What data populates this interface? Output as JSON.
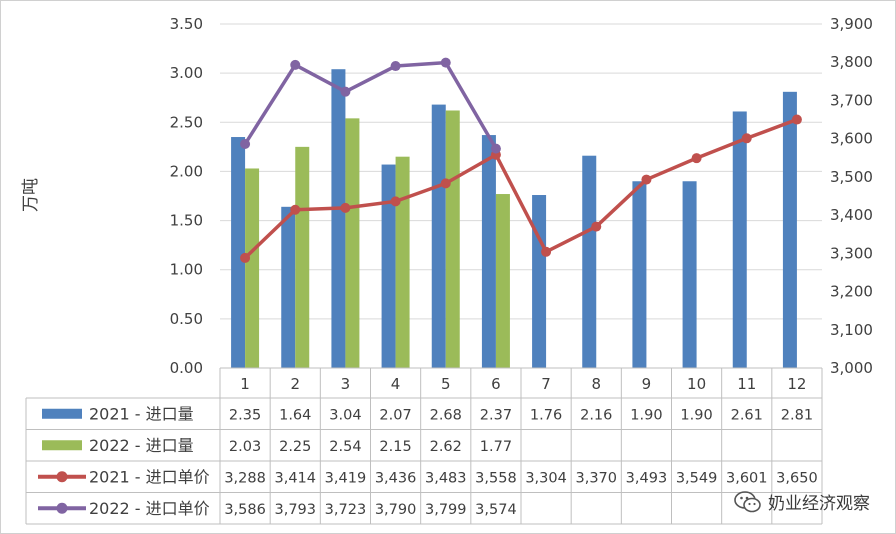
{
  "chart_data": {
    "type": "bar",
    "categories": [
      "1",
      "2",
      "3",
      "4",
      "5",
      "6",
      "7",
      "8",
      "9",
      "10",
      "11",
      "12"
    ],
    "ylabel": "万吨",
    "ylim": [
      0,
      3.5
    ],
    "y_ticks": [
      "0.00",
      "0.50",
      "1.00",
      "1.50",
      "2.00",
      "2.50",
      "3.00",
      "3.50"
    ],
    "y2lim": [
      3000,
      3900
    ],
    "y2_ticks": [
      "3,000",
      "3,100",
      "3,200",
      "3,300",
      "3,400",
      "3,500",
      "3,600",
      "3,700",
      "3,800",
      "3,900"
    ],
    "grid": true,
    "legend": "data table below chart",
    "series": [
      {
        "name": "2021 - 进口量",
        "type": "bar",
        "axis": "left",
        "color": "#4f81bd",
        "values": [
          2.35,
          1.64,
          3.04,
          2.07,
          2.68,
          2.37,
          1.76,
          2.16,
          1.9,
          1.9,
          2.61,
          2.81
        ],
        "labels": [
          "2.35",
          "1.64",
          "3.04",
          "2.07",
          "2.68",
          "2.37",
          "1.76",
          "2.16",
          "1.90",
          "1.90",
          "2.61",
          "2.81"
        ]
      },
      {
        "name": "2022 - 进口量",
        "type": "bar",
        "axis": "left",
        "color": "#9bbb59",
        "values": [
          2.03,
          2.25,
          2.54,
          2.15,
          2.62,
          1.77,
          null,
          null,
          null,
          null,
          null,
          null
        ],
        "labels": [
          "2.03",
          "2.25",
          "2.54",
          "2.15",
          "2.62",
          "1.77",
          "",
          "",
          "",
          "",
          "",
          ""
        ]
      },
      {
        "name": "2021 - 进口单价",
        "type": "line",
        "axis": "right",
        "color": "#c0504d",
        "values": [
          3288,
          3414,
          3419,
          3436,
          3483,
          3558,
          3304,
          3370,
          3493,
          3549,
          3601,
          3650
        ],
        "labels": [
          "3,288",
          "3,414",
          "3,419",
          "3,436",
          "3,483",
          "3,558",
          "3,304",
          "3,370",
          "3,493",
          "3,549",
          "3,601",
          "3,650"
        ]
      },
      {
        "name": "2022 - 进口单价",
        "type": "line",
        "axis": "right",
        "color": "#8064a2",
        "values": [
          3586,
          3793,
          3723,
          3790,
          3799,
          3574,
          null,
          null,
          null,
          null,
          null,
          null
        ],
        "labels": [
          "3,586",
          "3,793",
          "3,723",
          "3,790",
          "3,799",
          "3,574",
          "",
          "",
          "",
          "",
          "",
          ""
        ]
      }
    ]
  },
  "watermark": {
    "text": "奶业经济观察",
    "icon": "wechat-icon"
  }
}
